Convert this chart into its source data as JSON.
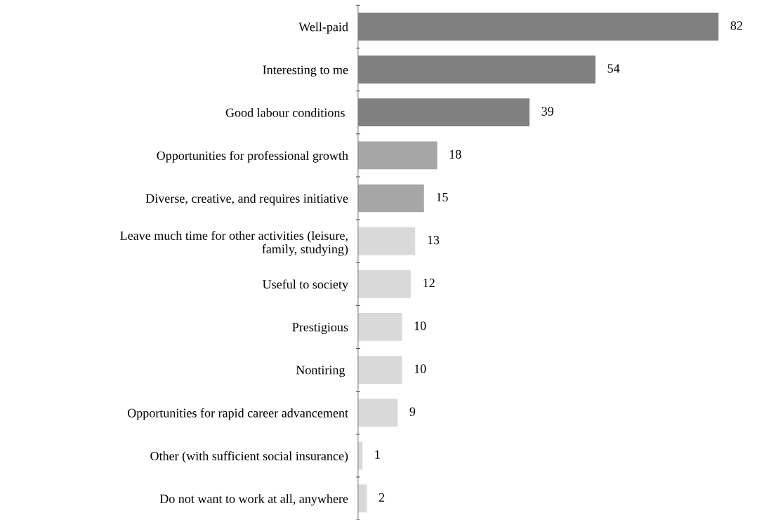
{
  "chart_data": {
    "type": "bar",
    "orientation": "horizontal",
    "data_labels": true,
    "categories": [
      "Well-paid",
      "Interesting to me",
      "Good labour conditions ",
      "Opportunities for professional growth",
      "Diverse, creative, and requires initiative",
      "Leave much time for other activities (leisure,\nfamily, studying)",
      "Useful to society",
      "Prestigious",
      "Nontiring ",
      "Opportunities for rapid career advancement",
      "Other (with sufficient social insurance)",
      "Do not want to work at all, anywhere"
    ],
    "values": [
      82,
      54,
      39,
      18,
      15,
      13,
      12,
      10,
      10,
      9,
      1,
      2
    ],
    "colors": [
      "#808080",
      "#808080",
      "#808080",
      "#a6a6a6",
      "#a6a6a6",
      "#d9d9d9",
      "#d9d9d9",
      "#d9d9d9",
      "#d9d9d9",
      "#d9d9d9",
      "#d9d9d9",
      "#d9d9d9"
    ],
    "grid": false,
    "legend": false
  }
}
